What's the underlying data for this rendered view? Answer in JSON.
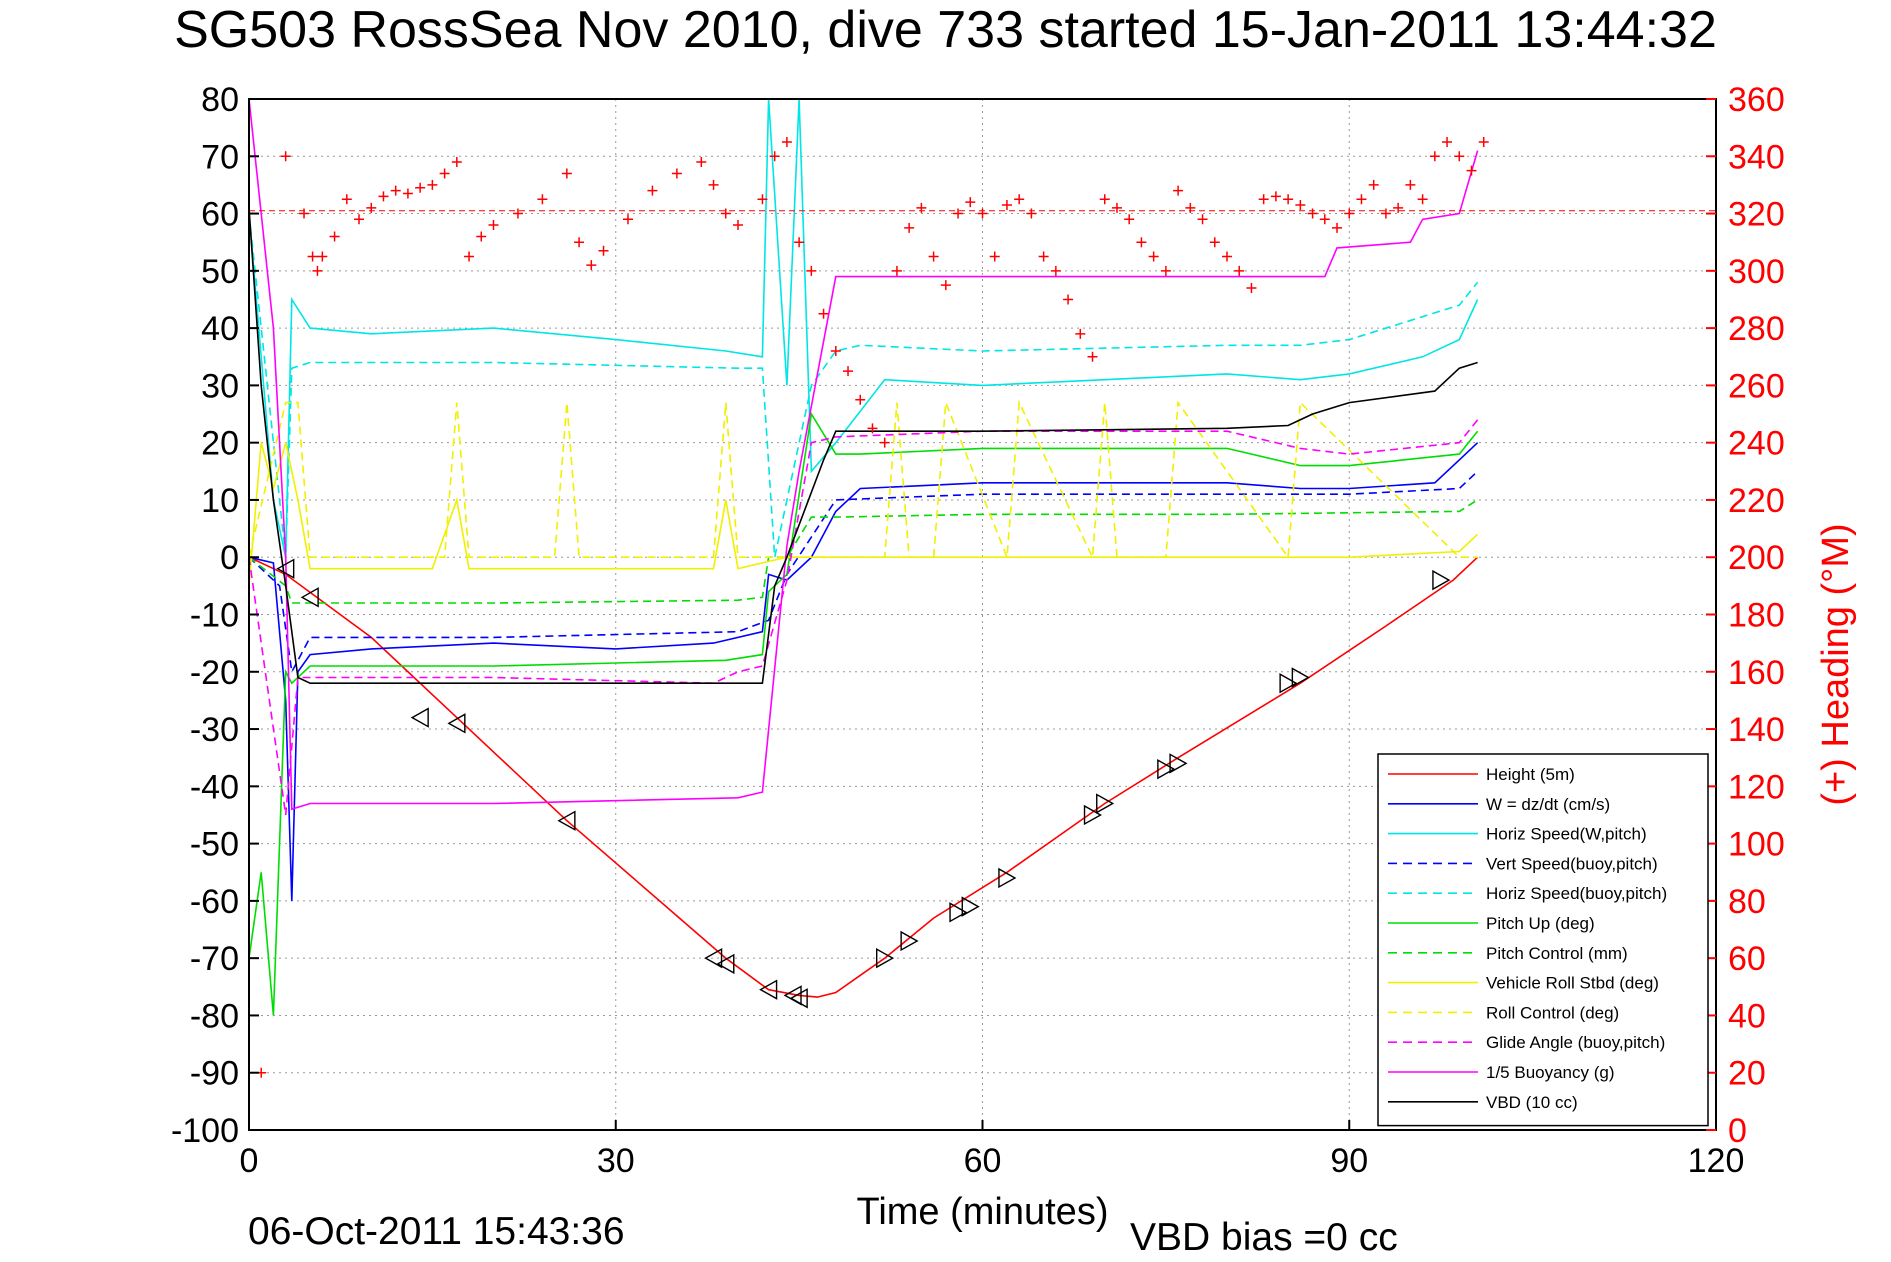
{
  "title": "SG503 RossSea Nov 2010, dive 733 started 15-Jan-2011 13:44:32",
  "footer": {
    "date": "06-Oct-2011 15:43:36",
    "vbd_bias": "VBD bias =0 cc"
  },
  "colors": {
    "red": "#ff0000",
    "blue": "#0000ff",
    "cyan": "#00e5e5",
    "green": "#00dd00",
    "yellow": "#f0f000",
    "magenta": "#ff00ff",
    "black": "#000000"
  },
  "chart_data": {
    "type": "line",
    "xlabel": "Time (minutes)",
    "ylabel": "",
    "y2label": "(+) Heading (°M)",
    "xlim": [
      0,
      120
    ],
    "ylim": [
      -100,
      80
    ],
    "y2lim": [
      0,
      360
    ],
    "xticks": [
      "0",
      "30",
      "60",
      "90",
      "120"
    ],
    "yticks": [
      "80",
      "70",
      "60",
      "50",
      "40",
      "30",
      "20",
      "10",
      "0",
      "-10",
      "-20",
      "-30",
      "-40",
      "-50",
      "-60",
      "-70",
      "-80",
      "-90",
      "-100"
    ],
    "y2ticks": [
      "360",
      "340",
      "320",
      "300",
      "280",
      "260",
      "240",
      "220",
      "200",
      "180",
      "160",
      "140",
      "120",
      "100",
      "80",
      "60",
      "40",
      "20",
      "0"
    ],
    "grid": true,
    "legend_position": "bottom-right",
    "series": [
      {
        "name": "Height (5m)",
        "color": "red",
        "style": "solid",
        "x": [
          0,
          3,
          10,
          17,
          26,
          39,
          42.5,
          45,
          46.5,
          48,
          52,
          56,
          62,
          70,
          76,
          86,
          93,
          98.5,
          100.5
        ],
        "y": [
          0,
          -3,
          -14,
          -28,
          -46,
          -70,
          -75.5,
          -76.5,
          -76.8,
          -76,
          -70,
          -63,
          -55,
          -43,
          -35,
          -22,
          -12,
          -4,
          0
        ]
      },
      {
        "name": "W = dz/dt (cm/s)",
        "color": "blue",
        "style": "solid",
        "x": [
          0,
          2,
          3,
          3.5,
          4,
          5,
          10,
          20,
          30,
          38,
          42,
          42.5,
          44,
          46,
          48,
          50,
          60,
          70,
          80,
          86,
          90,
          97,
          99,
          100.5
        ],
        "y": [
          0,
          -1,
          -25,
          -60,
          -20,
          -17,
          -16,
          -15,
          -16,
          -15,
          -13,
          -3,
          -4,
          0,
          8,
          12,
          13,
          13,
          13,
          12,
          12,
          13,
          17,
          20
        ]
      },
      {
        "name": "Horiz Speed(W,pitch)",
        "color": "cyan",
        "style": "solid",
        "x": [
          0,
          2,
          3,
          3.5,
          5,
          10,
          20,
          30,
          39,
          42,
          42.5,
          44,
          45,
          46,
          48,
          52,
          60,
          70,
          80,
          86,
          90,
          96,
          99,
          100.5
        ],
        "y": [
          60,
          10,
          0,
          45,
          40,
          39,
          40,
          38,
          36,
          35,
          80,
          30,
          80,
          15,
          20,
          31,
          30,
          31,
          32,
          31,
          32,
          35,
          38,
          45
        ]
      },
      {
        "name": "Vert Speed(buoy,pitch)",
        "color": "blue",
        "style": "dashed",
        "x": [
          0,
          2.5,
          3.5,
          5,
          20,
          40,
          42.5,
          44,
          48,
          60,
          80,
          86,
          90,
          99,
          100.5
        ],
        "y": [
          0,
          -5,
          -20,
          -14,
          -14,
          -13,
          -11,
          -3,
          10,
          11,
          11,
          11,
          11,
          12,
          15
        ]
      },
      {
        "name": "Horiz Speed(buoy,pitch)",
        "color": "cyan",
        "style": "dashed",
        "x": [
          0,
          3,
          3.5,
          5,
          20,
          40,
          42,
          43,
          46,
          48,
          50,
          60,
          80,
          86,
          90,
          99,
          100.5
        ],
        "y": [
          60,
          0,
          33,
          34,
          34,
          33,
          33,
          0,
          30,
          36,
          37,
          36,
          37,
          37,
          38,
          44,
          48
        ]
      },
      {
        "name": "Pitch Up (deg)",
        "color": "green",
        "style": "solid",
        "x": [
          0,
          1,
          2,
          3,
          3.5,
          5,
          20,
          39,
          42,
          42.5,
          44,
          46,
          48,
          50,
          60,
          70,
          80,
          86,
          90,
          99,
          100.5
        ],
        "y": [
          -70,
          -55,
          -80,
          -20,
          -22,
          -19,
          -19,
          -18,
          -17,
          -6,
          -3,
          25,
          18,
          18,
          19,
          19,
          19,
          16,
          16,
          18,
          22
        ]
      },
      {
        "name": "Pitch Control (mm)",
        "color": "green",
        "style": "dashed",
        "x": [
          0,
          3,
          3.5,
          5,
          20,
          40,
          42,
          42.5,
          44,
          46,
          48,
          60,
          80,
          99,
          100.5
        ],
        "y": [
          0,
          -5,
          -8,
          -8,
          -8,
          -7.5,
          -7,
          0,
          0,
          7,
          7,
          7.5,
          7.5,
          8,
          10
        ]
      },
      {
        "name": "Vehicle Roll Stbd (deg)",
        "color": "yellow",
        "style": "solid",
        "x": [
          0,
          1,
          2,
          3,
          4,
          5,
          15,
          17,
          18,
          25,
          27,
          38,
          39,
          40,
          42,
          44,
          46,
          48,
          50,
          60,
          80,
          85,
          86,
          90,
          99,
          100.5
        ],
        "y": [
          -5,
          20,
          12,
          20,
          10,
          -2,
          -2,
          10,
          -2,
          -2,
          -2,
          -2,
          10,
          -2,
          -1,
          0,
          0,
          0,
          0,
          0,
          0,
          0,
          0,
          0,
          1,
          4
        ]
      },
      {
        "name": "Roll Control (deg)",
        "color": "yellow",
        "style": "dashed",
        "x": [
          0,
          3,
          4,
          5,
          16,
          17,
          18,
          25,
          26,
          27,
          38,
          39,
          40,
          42,
          44,
          52,
          53,
          54,
          56,
          57,
          62,
          63,
          69,
          70,
          71,
          75,
          76,
          85,
          86,
          99,
          100.5
        ],
        "y": [
          0,
          27,
          27,
          0,
          0,
          27,
          0,
          0,
          27,
          0,
          0,
          27,
          0,
          0,
          0,
          0,
          27,
          0,
          0,
          27,
          0,
          27,
          0,
          27,
          0,
          0,
          27,
          0,
          27,
          0,
          0
        ]
      },
      {
        "name": "Glide Angle (buoy,pitch)",
        "color": "magenta",
        "style": "dashed",
        "x": [
          0,
          3,
          4,
          5,
          20,
          38,
          40,
          42,
          44,
          46,
          48,
          60,
          70,
          80,
          86,
          90,
          99,
          100.5
        ],
        "y": [
          0,
          -45,
          -21,
          -21,
          -21,
          -22,
          -20,
          -19,
          -4,
          20,
          21,
          22,
          22,
          22,
          19,
          18,
          20,
          24
        ]
      },
      {
        "name": "1/5 Buoyancy (g)",
        "color": "magenta",
        "style": "solid",
        "x": [
          0,
          1,
          2,
          3,
          3.5,
          5,
          20,
          40,
          42,
          44,
          45,
          48,
          50,
          60,
          70,
          80,
          88,
          89,
          95,
          96,
          99,
          100.5
        ],
        "y": [
          80,
          60,
          40,
          0,
          -44,
          -43,
          -43,
          -42,
          -41,
          2,
          15,
          49,
          49,
          49,
          49,
          49,
          49,
          54,
          55,
          59,
          60,
          71
        ]
      },
      {
        "name": "VBD (10 cc)",
        "color": "black",
        "style": "solid",
        "x": [
          0,
          1,
          2,
          3,
          4,
          5,
          20,
          40,
          42,
          43,
          44,
          47,
          48,
          50,
          60,
          80,
          85,
          87,
          90,
          97,
          99,
          100.5
        ],
        "y": [
          61,
          30,
          10,
          -5,
          -21,
          -22,
          -22,
          -22,
          -22,
          -5,
          0,
          17,
          22,
          22,
          22,
          22.5,
          23,
          25,
          27,
          29,
          33,
          34
        ]
      }
    ],
    "heading": {
      "name": "(+) Heading (°M)",
      "color": "red",
      "marker": "+",
      "axis": "right",
      "reference_line": 321,
      "x": [
        1,
        3,
        4.5,
        5.2,
        5.6,
        6,
        7,
        8,
        9,
        10,
        11,
        12,
        13,
        14,
        15,
        16,
        17,
        18,
        19,
        20,
        22,
        24,
        26,
        27,
        28,
        29,
        31,
        33,
        35,
        37,
        38,
        39,
        40,
        42,
        43,
        44,
        45,
        46,
        47,
        48,
        49,
        50,
        51,
        52,
        53,
        54,
        55,
        56,
        57,
        58,
        59,
        60,
        61,
        62,
        63,
        64,
        65,
        66,
        67,
        68,
        69,
        70,
        71,
        72,
        73,
        74,
        75,
        76,
        77,
        78,
        79,
        80,
        81,
        82,
        83,
        84,
        85,
        86,
        87,
        88,
        89,
        90,
        91,
        92,
        93,
        94,
        95,
        96,
        97,
        98,
        99,
        100,
        101
      ],
      "y": [
        20,
        340,
        320,
        305,
        300,
        305,
        312,
        325,
        318,
        322,
        326,
        328,
        327,
        329,
        330,
        334,
        338,
        305,
        312,
        316,
        320,
        325,
        334,
        310,
        302,
        307,
        318,
        328,
        334,
        338,
        330,
        320,
        316,
        325,
        340,
        345,
        310,
        300,
        285,
        272,
        265,
        255,
        245,
        240,
        300,
        315,
        322,
        305,
        295,
        320,
        324,
        320,
        305,
        323,
        325,
        320,
        305,
        300,
        290,
        278,
        270,
        325,
        322,
        318,
        310,
        305,
        300,
        328,
        322,
        318,
        310,
        305,
        300,
        294,
        325,
        326,
        325,
        323,
        320,
        318,
        315,
        320,
        325,
        330,
        320,
        322,
        330,
        325,
        340,
        345,
        340,
        335,
        345
      ]
    },
    "triangles": {
      "x": [
        3,
        5,
        14,
        17,
        26,
        38,
        39,
        42.5,
        44.5,
        45,
        52,
        54,
        58,
        59,
        62,
        69,
        70,
        75,
        76,
        85,
        86,
        97.5
      ],
      "y": [
        -2,
        -7,
        -28,
        -29,
        -46,
        -70,
        -71,
        -75.5,
        -76.5,
        -77,
        -70,
        -67,
        -62,
        -61,
        -56,
        -45,
        -43,
        -37,
        -36,
        -22,
        -21,
        -4
      ]
    }
  },
  "legend": {
    "items": [
      {
        "label": "Height (5m)",
        "color": "red",
        "style": "solid"
      },
      {
        "label": "W = dz/dt (cm/s)",
        "color": "blue",
        "style": "solid"
      },
      {
        "label": "Horiz Speed(W,pitch)",
        "color": "cyan",
        "style": "solid"
      },
      {
        "label": "Vert Speed(buoy,pitch)",
        "color": "blue",
        "style": "dashed"
      },
      {
        "label": "Horiz Speed(buoy,pitch)",
        "color": "cyan",
        "style": "dashed"
      },
      {
        "label": "Pitch Up (deg)",
        "color": "green",
        "style": "solid"
      },
      {
        "label": "Pitch Control (mm)",
        "color": "green",
        "style": "dashed"
      },
      {
        "label": "Vehicle Roll Stbd (deg)",
        "color": "yellow",
        "style": "solid"
      },
      {
        "label": "Roll Control (deg)",
        "color": "yellow",
        "style": "dashed"
      },
      {
        "label": "Glide Angle (buoy,pitch)",
        "color": "magenta",
        "style": "dashed"
      },
      {
        "label": "1/5 Buoyancy (g)",
        "color": "magenta",
        "style": "solid"
      },
      {
        "label": "VBD (10 cc)",
        "color": "black",
        "style": "solid"
      }
    ]
  }
}
